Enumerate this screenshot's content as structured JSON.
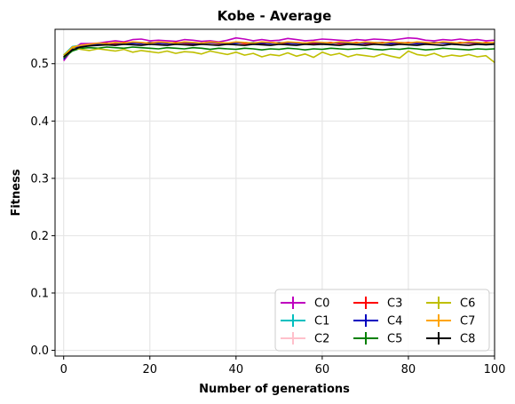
{
  "chart_data": {
    "type": "line",
    "title": "Kobe - Average",
    "xlabel": "Number of generations",
    "ylabel": "Fitness",
    "xlim": [
      -2,
      100
    ],
    "ylim": [
      -0.01,
      0.56
    ],
    "xticks": [
      0,
      20,
      40,
      60,
      80,
      100
    ],
    "yticks": [
      0.0,
      0.1,
      0.2,
      0.3,
      0.4,
      0.5
    ],
    "xtick_labels": [
      "0",
      "20",
      "40",
      "60",
      "80",
      "100"
    ],
    "ytick_labels": [
      "0.0",
      "0.1",
      "0.2",
      "0.3",
      "0.4",
      "0.5"
    ],
    "grid": true,
    "legend": {
      "position": "lower-right",
      "columns": 3
    },
    "x": [
      0,
      2,
      4,
      6,
      8,
      10,
      12,
      14,
      16,
      18,
      20,
      22,
      24,
      26,
      28,
      30,
      32,
      34,
      36,
      38,
      40,
      42,
      44,
      46,
      48,
      50,
      52,
      54,
      56,
      58,
      60,
      62,
      64,
      66,
      68,
      70,
      72,
      74,
      76,
      78,
      80,
      82,
      84,
      86,
      88,
      90,
      92,
      94,
      96,
      98,
      100
    ],
    "series": [
      {
        "name": "C0",
        "color": "#bf00bf",
        "values": [
          0.505,
          0.525,
          0.535,
          0.535,
          0.536,
          0.538,
          0.54,
          0.538,
          0.542,
          0.543,
          0.54,
          0.541,
          0.54,
          0.539,
          0.542,
          0.541,
          0.539,
          0.54,
          0.538,
          0.541,
          0.545,
          0.543,
          0.54,
          0.542,
          0.54,
          0.541,
          0.544,
          0.542,
          0.54,
          0.541,
          0.543,
          0.542,
          0.541,
          0.54,
          0.542,
          0.541,
          0.543,
          0.542,
          0.541,
          0.543,
          0.545,
          0.544,
          0.541,
          0.54,
          0.542,
          0.541,
          0.543,
          0.541,
          0.542,
          0.54,
          0.541
        ]
      },
      {
        "name": "C1",
        "color": "#00bfbf",
        "values": [
          0.515,
          0.53,
          0.532,
          0.533,
          0.535,
          0.534,
          0.536,
          0.535,
          0.537,
          0.536,
          0.535,
          0.537,
          0.536,
          0.535,
          0.536,
          0.537,
          0.536,
          0.535,
          0.537,
          0.536,
          0.535,
          0.536,
          0.537,
          0.536,
          0.535,
          0.536,
          0.537,
          0.536,
          0.535,
          0.536,
          0.537,
          0.536,
          0.535,
          0.537,
          0.536,
          0.535,
          0.536,
          0.537,
          0.536,
          0.535,
          0.536,
          0.537,
          0.536,
          0.535,
          0.537,
          0.536,
          0.535,
          0.536,
          0.537,
          0.536,
          0.536
        ]
      },
      {
        "name": "C2",
        "color": "#ffc0cb",
        "values": [
          0.512,
          0.528,
          0.53,
          0.532,
          0.534,
          0.533,
          0.535,
          0.534,
          0.536,
          0.535,
          0.534,
          0.535,
          0.536,
          0.534,
          0.535,
          0.534,
          0.536,
          0.535,
          0.534,
          0.535,
          0.536,
          0.534,
          0.535,
          0.536,
          0.534,
          0.535,
          0.536,
          0.534,
          0.535,
          0.534,
          0.536,
          0.535,
          0.534,
          0.535,
          0.536,
          0.534,
          0.535,
          0.536,
          0.534,
          0.535,
          0.536,
          0.534,
          0.535,
          0.534,
          0.536,
          0.535,
          0.534,
          0.535,
          0.536,
          0.534,
          0.535
        ]
      },
      {
        "name": "C3",
        "color": "#ff0000",
        "values": [
          0.51,
          0.527,
          0.531,
          0.533,
          0.535,
          0.536,
          0.534,
          0.537,
          0.536,
          0.535,
          0.537,
          0.536,
          0.535,
          0.537,
          0.536,
          0.534,
          0.536,
          0.537,
          0.535,
          0.536,
          0.537,
          0.535,
          0.536,
          0.534,
          0.537,
          0.536,
          0.535,
          0.537,
          0.536,
          0.535,
          0.536,
          0.537,
          0.535,
          0.536,
          0.537,
          0.535,
          0.536,
          0.537,
          0.535,
          0.536,
          0.537,
          0.536,
          0.535,
          0.537,
          0.536,
          0.535,
          0.537,
          0.536,
          0.535,
          0.537,
          0.536
        ]
      },
      {
        "name": "C4",
        "color": "#0000bf",
        "values": [
          0.508,
          0.526,
          0.53,
          0.533,
          0.534,
          0.535,
          0.536,
          0.535,
          0.536,
          0.535,
          0.537,
          0.536,
          0.535,
          0.536,
          0.537,
          0.535,
          0.536,
          0.537,
          0.536,
          0.535,
          0.536,
          0.537,
          0.535,
          0.536,
          0.535,
          0.537,
          0.536,
          0.535,
          0.536,
          0.537,
          0.536,
          0.535,
          0.537,
          0.536,
          0.535,
          0.536,
          0.537,
          0.536,
          0.535,
          0.537,
          0.536,
          0.535,
          0.536,
          0.537,
          0.536,
          0.535,
          0.536,
          0.537,
          0.536,
          0.535,
          0.536
        ]
      },
      {
        "name": "C5",
        "color": "#008000",
        "values": [
          0.51,
          0.522,
          0.527,
          0.528,
          0.527,
          0.529,
          0.528,
          0.527,
          0.529,
          0.528,
          0.527,
          0.526,
          0.528,
          0.527,
          0.526,
          0.528,
          0.527,
          0.525,
          0.527,
          0.526,
          0.525,
          0.527,
          0.526,
          0.524,
          0.526,
          0.525,
          0.527,
          0.526,
          0.524,
          0.526,
          0.525,
          0.527,
          0.526,
          0.525,
          0.526,
          0.527,
          0.525,
          0.524,
          0.526,
          0.525,
          0.527,
          0.526,
          0.524,
          0.525,
          0.527,
          0.526,
          0.525,
          0.524,
          0.526,
          0.525,
          0.526
        ]
      },
      {
        "name": "C6",
        "color": "#bfbf00",
        "values": [
          0.515,
          0.528,
          0.525,
          0.523,
          0.526,
          0.524,
          0.522,
          0.525,
          0.52,
          0.523,
          0.521,
          0.519,
          0.522,
          0.518,
          0.521,
          0.52,
          0.517,
          0.522,
          0.519,
          0.516,
          0.52,
          0.515,
          0.518,
          0.512,
          0.516,
          0.514,
          0.519,
          0.513,
          0.517,
          0.511,
          0.52,
          0.515,
          0.518,
          0.512,
          0.516,
          0.514,
          0.512,
          0.517,
          0.513,
          0.51,
          0.522,
          0.516,
          0.514,
          0.518,
          0.512,
          0.515,
          0.513,
          0.516,
          0.512,
          0.514,
          0.502
        ]
      },
      {
        "name": "C7",
        "color": "#ffa500",
        "values": [
          0.512,
          0.529,
          0.532,
          0.534,
          0.536,
          0.535,
          0.537,
          0.536,
          0.538,
          0.537,
          0.536,
          0.538,
          0.537,
          0.536,
          0.538,
          0.537,
          0.536,
          0.538,
          0.537,
          0.536,
          0.538,
          0.537,
          0.536,
          0.538,
          0.537,
          0.536,
          0.538,
          0.537,
          0.536,
          0.538,
          0.537,
          0.536,
          0.538,
          0.537,
          0.536,
          0.538,
          0.537,
          0.536,
          0.538,
          0.537,
          0.536,
          0.538,
          0.537,
          0.536,
          0.538,
          0.537,
          0.536,
          0.538,
          0.537,
          0.536,
          0.537
        ]
      },
      {
        "name": "C8",
        "color": "#000000",
        "values": [
          0.512,
          0.524,
          0.529,
          0.531,
          0.532,
          0.533,
          0.532,
          0.534,
          0.533,
          0.532,
          0.534,
          0.533,
          0.532,
          0.534,
          0.533,
          0.532,
          0.534,
          0.533,
          0.532,
          0.534,
          0.533,
          0.532,
          0.534,
          0.533,
          0.532,
          0.534,
          0.533,
          0.532,
          0.534,
          0.533,
          0.534,
          0.533,
          0.532,
          0.534,
          0.533,
          0.532,
          0.534,
          0.533,
          0.532,
          0.534,
          0.533,
          0.532,
          0.534,
          0.533,
          0.532,
          0.534,
          0.533,
          0.532,
          0.534,
          0.533,
          0.534
        ]
      }
    ]
  }
}
